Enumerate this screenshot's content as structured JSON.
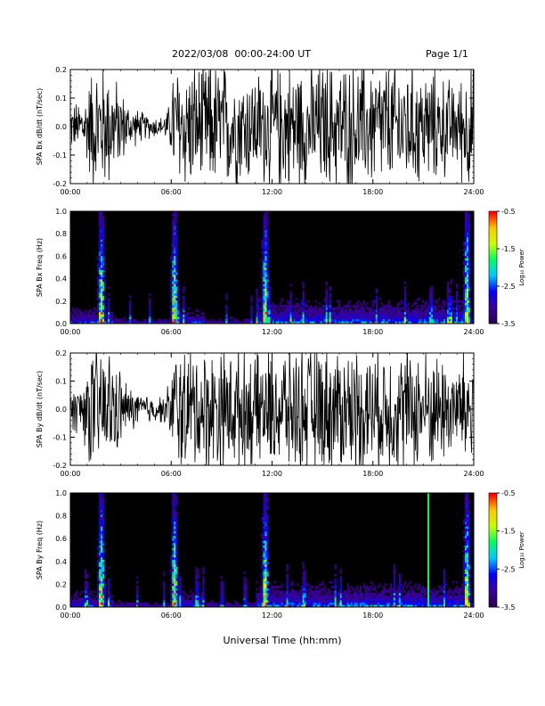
{
  "header": {
    "title": "2022/03/08  00:00-24:00 UT",
    "page": "Page 1/1"
  },
  "x_axis_title": "Universal Time (hh:mm)",
  "colors": {
    "background": "#000000",
    "trace": "#000000",
    "colormap": [
      "#2a0050",
      "#3a00a0",
      "#0000ff",
      "#00c8ff",
      "#00ff60",
      "#c8ff00",
      "#ffc800",
      "#ff0000"
    ]
  },
  "chart_data": [
    {
      "type": "line",
      "ylabel": "SPA Bx dB/dt (nT/sec)",
      "xlim": [
        0,
        24
      ],
      "ylim": [
        -0.2,
        0.2
      ],
      "yticks": [
        "0.2",
        "0.1",
        "0.0",
        "-0.1",
        "-0.2"
      ],
      "ytick_values": [
        0.2,
        0.1,
        0.0,
        -0.1,
        -0.2
      ],
      "xticks": [
        "00:00",
        "06:00",
        "12:00",
        "18:00",
        "24:00"
      ],
      "envelope": {
        "x_hours": [
          0,
          0.5,
          1.0,
          1.3,
          1.8,
          2.2,
          2.8,
          3.5,
          4.5,
          5.5,
          6.0,
          6.1,
          7.0,
          9.0,
          11.0,
          12.0,
          14.0,
          16.0,
          18.0,
          20.0,
          22.0,
          23.0,
          23.5,
          24.0
        ],
        "amplitude": [
          0.07,
          0.08,
          0.12,
          0.2,
          0.2,
          0.2,
          0.14,
          0.07,
          0.04,
          0.03,
          0.08,
          0.2,
          0.2,
          0.2,
          0.17,
          0.2,
          0.2,
          0.2,
          0.2,
          0.2,
          0.17,
          0.13,
          0.2,
          0.2
        ]
      }
    },
    {
      "type": "heatmap",
      "ylabel": "SPA Bx Freq (Hz)",
      "xlim": [
        0,
        24
      ],
      "ylim": [
        0.0,
        1.0
      ],
      "yticks": [
        "1.0",
        "0.8",
        "0.6",
        "0.4",
        "0.2",
        "0.0"
      ],
      "ytick_values": [
        1.0,
        0.8,
        0.6,
        0.4,
        0.2,
        0.0
      ],
      "xticks": [
        "00:00",
        "06:00",
        "12:00",
        "18:00",
        "24:00"
      ],
      "colorbar": {
        "label": "Log₁₀ Power",
        "range": [
          -3.5,
          -0.5
        ],
        "ticks": [
          "-0.5",
          "-1.5",
          "-2.5",
          "-3.5"
        ],
        "tick_values": [
          -0.5,
          -1.5,
          -2.5,
          -3.5
        ]
      },
      "bursts_hours": [
        1.85,
        6.2,
        11.6,
        23.6
      ],
      "marker_lines": []
    },
    {
      "type": "line",
      "ylabel": "SPA By dB/dt (nT/sec)",
      "xlim": [
        0,
        24
      ],
      "ylim": [
        -0.2,
        0.2
      ],
      "yticks": [
        "0.2",
        "0.1",
        "0.0",
        "-0.1",
        "-0.2"
      ],
      "ytick_values": [
        0.2,
        0.1,
        0.0,
        -0.1,
        -0.2
      ],
      "xticks": [
        "00:00",
        "06:00",
        "12:00",
        "18:00",
        "24:00"
      ],
      "envelope": {
        "x_hours": [
          0,
          0.5,
          1.0,
          1.3,
          1.8,
          2.2,
          2.8,
          3.5,
          4.5,
          5.5,
          6.0,
          6.1,
          7.0,
          9.0,
          11.0,
          12.0,
          14.0,
          16.0,
          18.0,
          20.0,
          22.0,
          23.0,
          23.5,
          24.0
        ],
        "amplitude": [
          0.06,
          0.08,
          0.14,
          0.2,
          0.2,
          0.2,
          0.14,
          0.07,
          0.05,
          0.04,
          0.1,
          0.2,
          0.2,
          0.2,
          0.18,
          0.2,
          0.2,
          0.2,
          0.2,
          0.2,
          0.18,
          0.15,
          0.2,
          0.2
        ]
      }
    },
    {
      "type": "heatmap",
      "ylabel": "SPA By Freq (Hz)",
      "xlim": [
        0,
        24
      ],
      "ylim": [
        0.0,
        1.0
      ],
      "yticks": [
        "1.0",
        "0.8",
        "0.6",
        "0.4",
        "0.2",
        "0.0"
      ],
      "ytick_values": [
        1.0,
        0.8,
        0.6,
        0.4,
        0.2,
        0.0
      ],
      "xticks": [
        "00:00",
        "06:00",
        "12:00",
        "18:00",
        "24:00"
      ],
      "colorbar": {
        "label": "Log₁₀ Power",
        "range": [
          -3.5,
          -0.5
        ],
        "ticks": [
          "-0.5",
          "-1.5",
          "-2.5",
          "-3.5"
        ],
        "tick_values": [
          -0.5,
          -1.5,
          -2.5,
          -3.5
        ]
      },
      "bursts_hours": [
        1.85,
        6.2,
        11.6,
        23.6
      ],
      "marker_lines": [
        {
          "x_hours": 21.3,
          "color": "#00ff40"
        }
      ]
    }
  ]
}
